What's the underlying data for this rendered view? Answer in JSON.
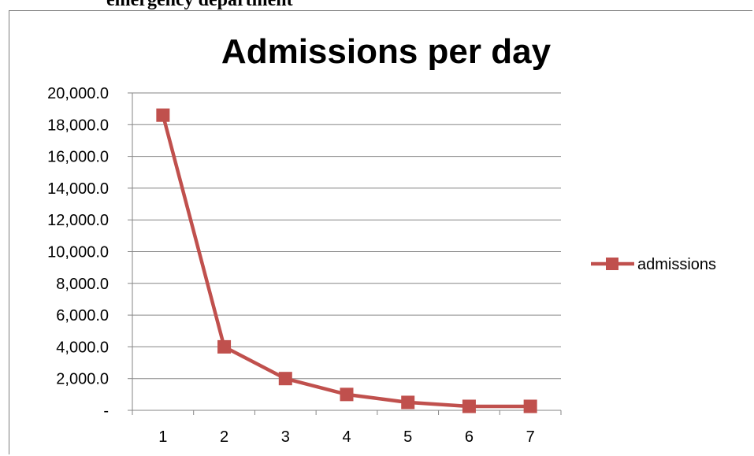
{
  "caption_fragment": "emergency department",
  "chart_data": {
    "type": "line",
    "title": "Admissions per day",
    "xlabel": "",
    "ylabel": "",
    "categories": [
      "1",
      "2",
      "3",
      "4",
      "5",
      "6",
      "7"
    ],
    "series": [
      {
        "name": "admissions",
        "values": [
          18600,
          4000,
          2000,
          1000,
          500,
          250,
          250
        ],
        "color": "#c0504d",
        "marker": "square"
      }
    ],
    "ylim": [
      0,
      20000
    ],
    "yticks": [
      0,
      2000,
      4000,
      6000,
      8000,
      10000,
      12000,
      14000,
      16000,
      18000,
      20000
    ],
    "ytick_labels": [
      "-",
      "2,000.0",
      "4,000.0",
      "6,000.0",
      "8,000.0",
      "10,000.0",
      "12,000.0",
      "14,000.0",
      "16,000.0",
      "18,000.0",
      "20,000.0"
    ],
    "grid": "horizontal",
    "legend_position": "right",
    "gridline_color": "#868686"
  }
}
